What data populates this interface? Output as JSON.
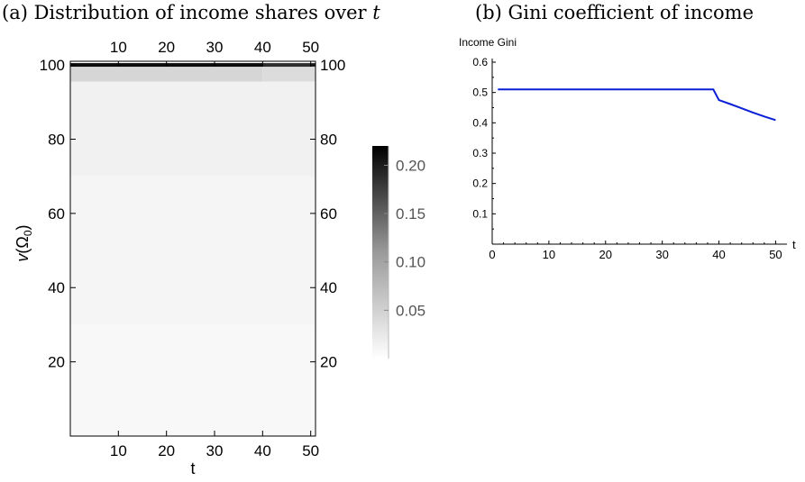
{
  "captions": {
    "a_prefix": "(a) Distribution of income shares over ",
    "a_var": "t",
    "b": "(b) Gini coefficient of income"
  },
  "chart_data": [
    {
      "type": "heatmap",
      "xlabel": "t",
      "ylabel": "v(Ω0)",
      "x_range": [
        0,
        51
      ],
      "y_range": [
        0,
        101
      ],
      "x_ticks": [
        10,
        20,
        30,
        40,
        50
      ],
      "y_ticks": [
        20,
        40,
        60,
        80,
        100
      ],
      "cells": [
        {
          "y_from": 99.5,
          "y_to": 100.5,
          "segments": [
            {
              "x_from": 0,
              "x_to": 40,
              "value": 0.21
            },
            {
              "x_from": 40,
              "x_to": 51,
              "value": 0.18
            }
          ]
        },
        {
          "y_from": 95.5,
          "y_to": 99.5,
          "segments": [
            {
              "x_from": 0,
              "x_to": 40,
              "value": 0.035
            },
            {
              "x_from": 40,
              "x_to": 51,
              "value": 0.03
            }
          ]
        },
        {
          "y_from": 70,
          "y_to": 95.5,
          "segments": [
            {
              "x_from": 0,
              "x_to": 51,
              "value": 0.012
            }
          ]
        },
        {
          "y_from": 30,
          "y_to": 70,
          "segments": [
            {
              "x_from": 0,
              "x_to": 51,
              "value": 0.009
            }
          ]
        },
        {
          "y_from": 0,
          "y_to": 30,
          "segments": [
            {
              "x_from": 0,
              "x_to": 51,
              "value": 0.006
            }
          ]
        }
      ],
      "colorbar": {
        "range": [
          0,
          0.22
        ],
        "ticks": [
          "0.05",
          "0.10",
          "0.15",
          "0.20"
        ]
      }
    },
    {
      "type": "line",
      "ylabel": "Income Gini",
      "xlabel": "t",
      "xlim": [
        0,
        52
      ],
      "ylim": [
        0,
        0.6
      ],
      "x_ticks": [
        0,
        10,
        20,
        30,
        40,
        50
      ],
      "y_ticks": [
        "0.1",
        "0.2",
        "0.3",
        "0.4",
        "0.5",
        "0.6"
      ],
      "series": [
        {
          "color": "#0b1fd6",
          "x": [
            1,
            39,
            40,
            42,
            44,
            46,
            48,
            50
          ],
          "y": [
            0.51,
            0.51,
            0.475,
            0.462,
            0.448,
            0.434,
            0.421,
            0.409
          ]
        }
      ]
    }
  ]
}
